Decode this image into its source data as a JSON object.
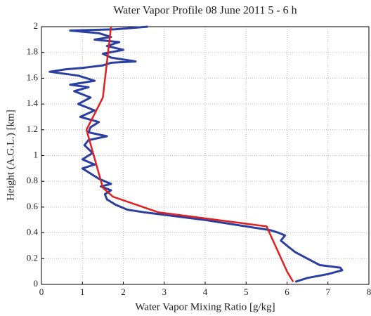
{
  "chart_data": {
    "type": "line",
    "title": "Water Vapor Profile 08 June 2011 5 - 6 h",
    "xlabel": "Water Vapor Mixing Ratio [g/kg]",
    "ylabel": "Height (A.G.L.) [km]",
    "xlim": [
      0,
      8
    ],
    "xticks": [
      0,
      1,
      2,
      3,
      4,
      5,
      6,
      7,
      8
    ],
    "ylim": [
      0,
      2
    ],
    "yticks": [
      0,
      0.2,
      0.4,
      0.6,
      0.8,
      1,
      1.2,
      1.4,
      1.6,
      1.8,
      2
    ],
    "grid": true,
    "series": [
      {
        "color": "#2b3fa0",
        "x": [
          6.2,
          6.5,
          7.0,
          7.35,
          7.3,
          6.8,
          6.5,
          6.2,
          6.0,
          5.85,
          5.95,
          5.8,
          5.6,
          5.0,
          4.0,
          3.0,
          2.5,
          2.1,
          1.8,
          1.6,
          1.55,
          1.7,
          1.45,
          1.7,
          1.4,
          1.2,
          1.0,
          1.3,
          1.0,
          1.25,
          1.05,
          1.15,
          1.6,
          1.15,
          1.2,
          1.4,
          0.95,
          1.3,
          0.9,
          1.2,
          0.8,
          1.15,
          0.7,
          1.3,
          0.9,
          0.2,
          0.6,
          1.0,
          1.5,
          1.7,
          2.3,
          1.7,
          1.5,
          2.0,
          1.6,
          1.9,
          1.3,
          1.7,
          1.4,
          0.7,
          1.8,
          2.6
        ],
        "values": [
          0.02,
          0.05,
          0.08,
          0.11,
          0.13,
          0.15,
          0.2,
          0.25,
          0.3,
          0.34,
          0.38,
          0.4,
          0.42,
          0.45,
          0.5,
          0.54,
          0.56,
          0.58,
          0.62,
          0.66,
          0.7,
          0.73,
          0.76,
          0.78,
          0.82,
          0.86,
          0.9,
          0.93,
          0.97,
          1.02,
          1.08,
          1.12,
          1.15,
          1.18,
          1.22,
          1.26,
          1.3,
          1.35,
          1.4,
          1.45,
          1.5,
          1.53,
          1.55,
          1.58,
          1.62,
          1.65,
          1.67,
          1.68,
          1.7,
          1.72,
          1.73,
          1.76,
          1.79,
          1.82,
          1.85,
          1.88,
          1.9,
          1.92,
          1.95,
          1.97,
          1.98,
          2.0
        ]
      },
      {
        "color": "#e02020",
        "x": [
          6.15,
          6.0,
          5.5,
          2.85,
          1.75,
          1.5,
          1.1,
          1.5,
          1.7
        ],
        "values": [
          0.02,
          0.1,
          0.45,
          0.56,
          0.68,
          0.75,
          1.2,
          1.45,
          2.0
        ]
      }
    ]
  }
}
